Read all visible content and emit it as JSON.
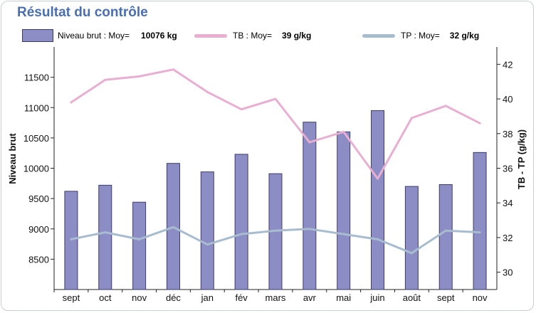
{
  "title": "Résultat du contrôle",
  "legend": {
    "niveau": {
      "label": "Niveau brut : Moy=",
      "value": "10076 kg"
    },
    "tb": {
      "label": "TB : Moy=",
      "value": "39 g/kg"
    },
    "tp": {
      "label": "TP : Moy=",
      "value": "32 g/kg"
    }
  },
  "colors": {
    "bar": "#8d8dc6",
    "bar_border": "#3c3c6a",
    "tb": "#e8afd3",
    "tp": "#a8bcd0",
    "title": "#4a6fb0"
  },
  "chart_data": {
    "type": "bar",
    "categories": [
      "sept",
      "oct",
      "nov",
      "déc",
      "jan",
      "fév",
      "mars",
      "avr",
      "mai",
      "juin",
      "août",
      "sept",
      "nov"
    ],
    "ylabel": "Niveau brut",
    "y2label": "TB - TP (g/kg)",
    "ylim": [
      8000,
      12000
    ],
    "y_ticks": [
      8500,
      9000,
      9500,
      10000,
      10500,
      11000,
      11500
    ],
    "y2lim": [
      29,
      43
    ],
    "y2_ticks": [
      30,
      32,
      34,
      36,
      38,
      40,
      42
    ],
    "series": [
      {
        "name": "Niveau brut",
        "axis": "left",
        "kind": "bar",
        "values": [
          9620,
          9720,
          9440,
          10080,
          9940,
          10230,
          9910,
          10760,
          10600,
          10950,
          9700,
          9730,
          10260
        ]
      },
      {
        "name": "TB",
        "axis": "right",
        "kind": "line",
        "values": [
          39.8,
          41.1,
          41.3,
          41.7,
          40.4,
          39.4,
          40.0,
          37.5,
          38.1,
          35.4,
          38.9,
          39.6,
          38.6
        ]
      },
      {
        "name": "TP",
        "axis": "right",
        "kind": "line",
        "values": [
          31.9,
          32.3,
          31.9,
          32.6,
          31.6,
          32.2,
          32.4,
          32.5,
          32.2,
          31.9,
          31.1,
          32.4,
          32.3
        ]
      }
    ],
    "grid": false
  }
}
